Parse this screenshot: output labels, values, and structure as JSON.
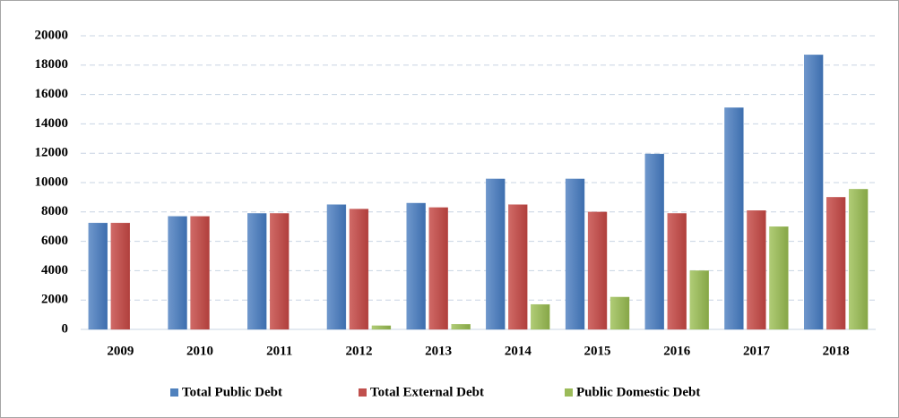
{
  "chart_data": {
    "type": "bar",
    "categories": [
      "2009",
      "2010",
      "2011",
      "2012",
      "2013",
      "2014",
      "2015",
      "2016",
      "2017",
      "2018"
    ],
    "series": [
      {
        "name": "Total Public Debt",
        "color": "#4f81bd",
        "values": [
          7250,
          7700,
          7900,
          8500,
          8600,
          10250,
          10250,
          11950,
          15100,
          18700
        ]
      },
      {
        "name": "Total External Debt",
        "color": "#c0504d",
        "values": [
          7250,
          7700,
          7900,
          8200,
          8300,
          8500,
          8000,
          7900,
          8100,
          9000
        ]
      },
      {
        "name": "Public Domestic Debt",
        "color": "#9bbb59",
        "values": [
          0,
          0,
          0,
          250,
          350,
          1700,
          2200,
          4000,
          7000,
          9550
        ]
      }
    ],
    "ylim": [
      0,
      20000
    ],
    "yticks": [
      0,
      2000,
      4000,
      6000,
      8000,
      10000,
      12000,
      14000,
      16000,
      18000,
      20000
    ],
    "grid": true,
    "legend": "bottom"
  }
}
